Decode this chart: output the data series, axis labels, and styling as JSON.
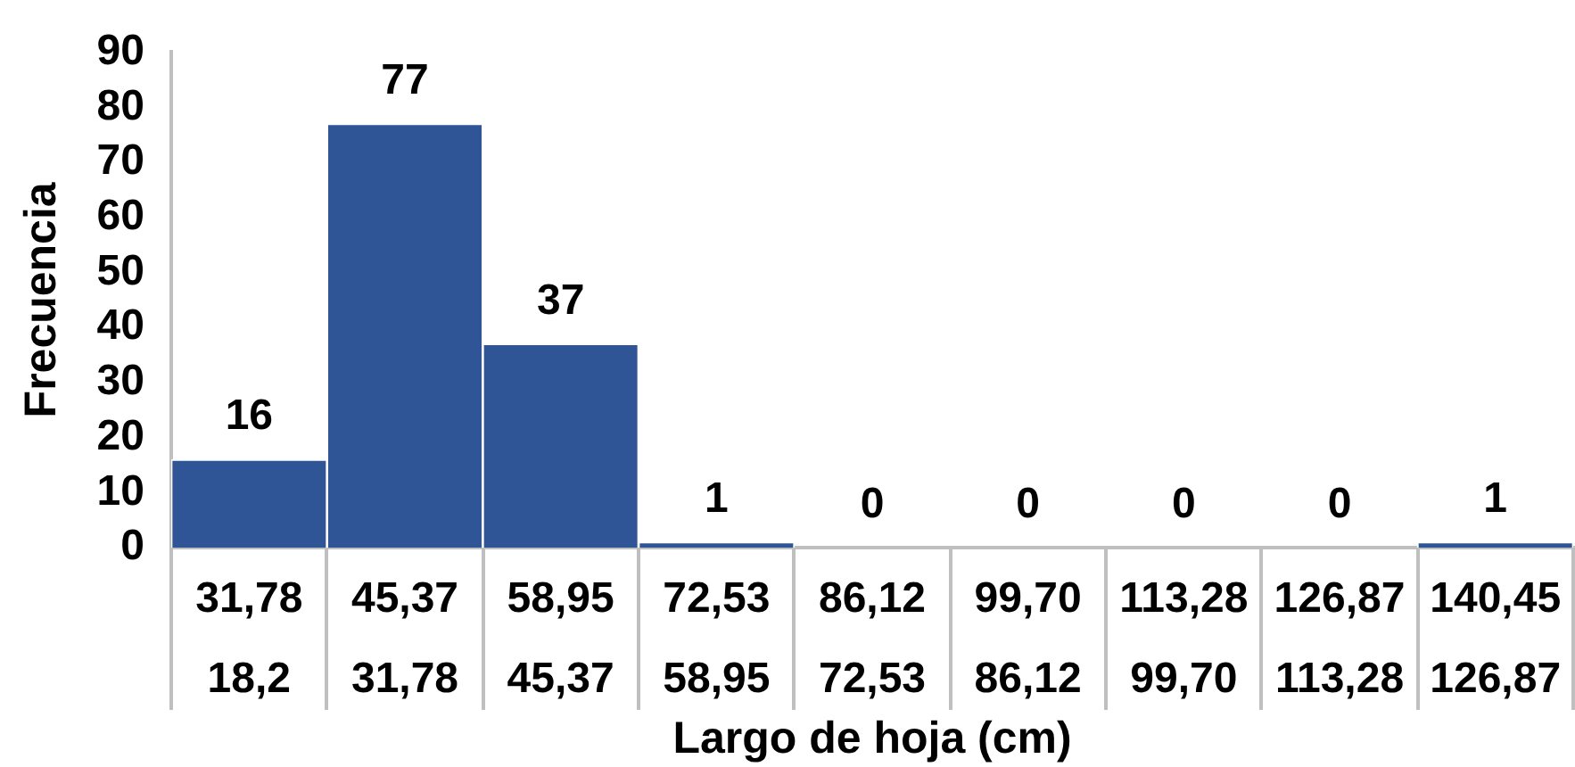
{
  "chart_data": {
    "type": "bar",
    "xlabel": "Largo de hoja (cm)",
    "ylabel": "Frecuencia",
    "categories": [
      "31,78\n18,2",
      "45,37\n31,78",
      "58,95\n45,37",
      "72,53\n58,95",
      "86,12\n72,53",
      "99,70\n86,12",
      "113,28\n99,70",
      "126,87\n113,28",
      "140,45\n126,87"
    ],
    "values": [
      16,
      77,
      37,
      1,
      0,
      0,
      0,
      0,
      1
    ],
    "color": "#2f5597",
    "ylim": [
      0,
      90
    ],
    "yticks": [
      0,
      10,
      20,
      30,
      40,
      50,
      60,
      70,
      80,
      90
    ],
    "data_labels": true
  }
}
